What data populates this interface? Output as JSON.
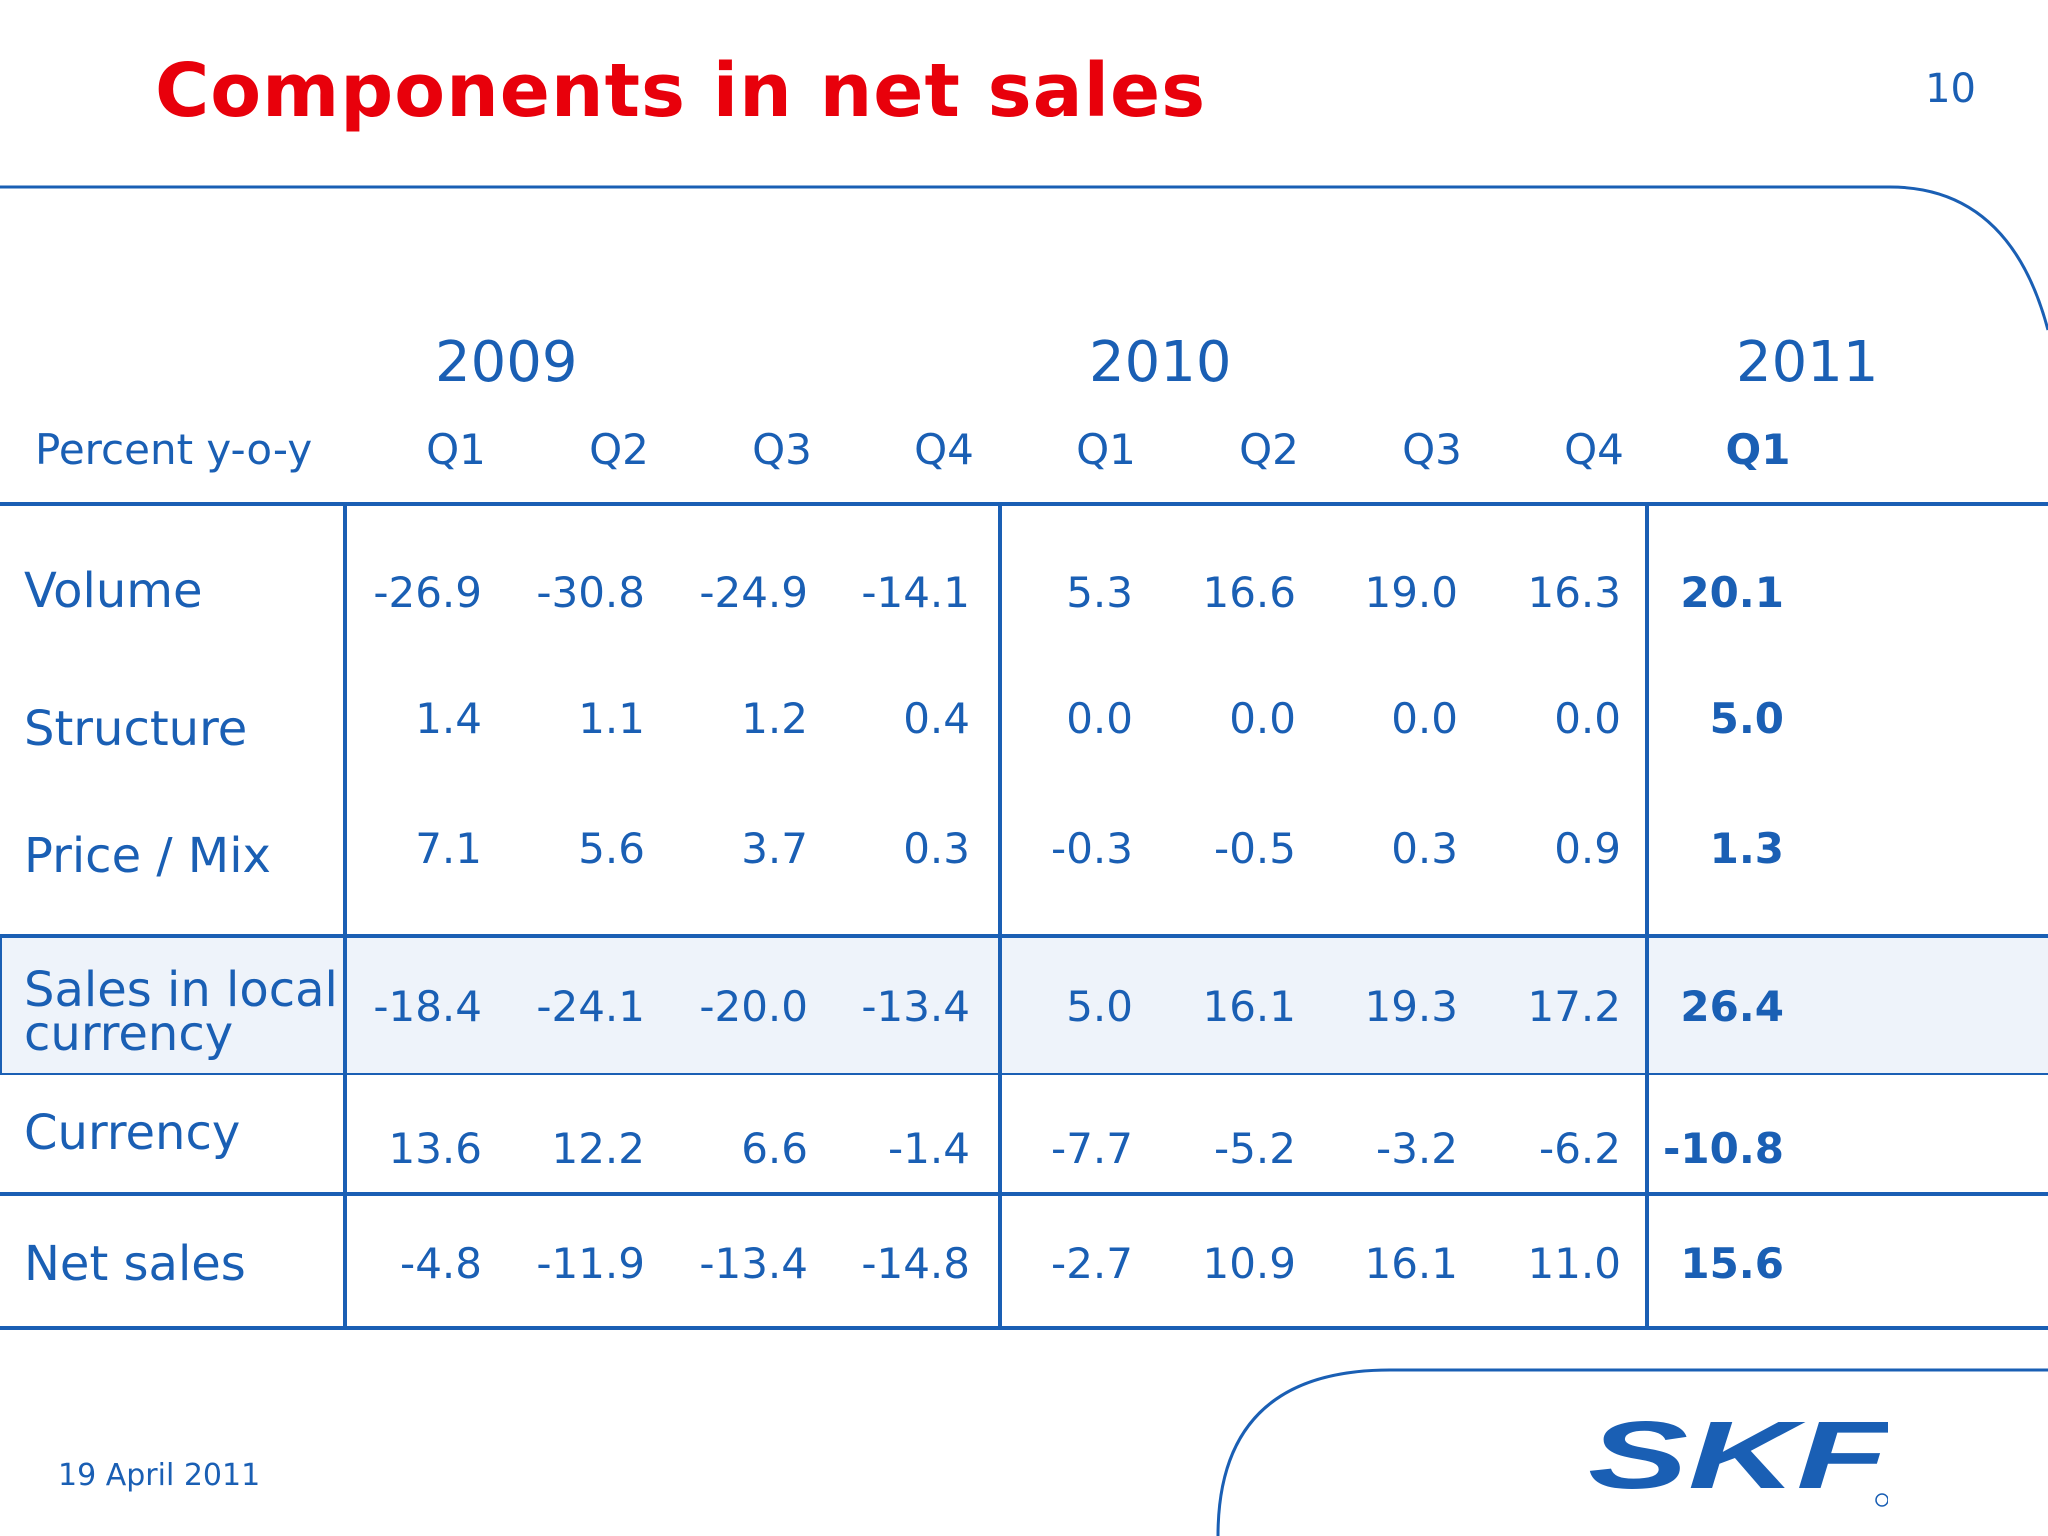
{
  "title": "Components in net sales",
  "page_number": "10",
  "date": "19 April 2011",
  "logo_text": "SKF",
  "colors": {
    "title": "#e8000b",
    "primary": "#1a5fb4",
    "highlight_row": "#eef3fa"
  },
  "table": {
    "years": [
      "2009",
      "2010",
      "2011"
    ],
    "unit_label": "Percent y-o-y",
    "quarters": [
      "Q1",
      "Q2",
      "Q3",
      "Q4",
      "Q1",
      "Q2",
      "Q3",
      "Q4",
      "Q1"
    ],
    "rows": [
      {
        "label": "Volume",
        "values": [
          "-26.9",
          "-30.8",
          "-24.9",
          "-14.1",
          "5.3",
          "16.6",
          "19.0",
          "16.3",
          "20.1"
        ]
      },
      {
        "label": "Structure",
        "values": [
          "1.4",
          "1.1",
          "1.2",
          "0.4",
          "0.0",
          "0.0",
          "0.0",
          "0.0",
          "5.0"
        ]
      },
      {
        "label": "Price / Mix",
        "values": [
          "7.1",
          "5.6",
          "3.7",
          "0.3",
          "-0.3",
          "-0.5",
          "0.3",
          "0.9",
          "1.3"
        ]
      },
      {
        "label_line1": "Sales in local",
        "label_line2": "currency",
        "values": [
          "-18.4",
          "-24.1",
          "-20.0",
          "-13.4",
          "5.0",
          "16.1",
          "19.3",
          "17.2",
          "26.4"
        ]
      },
      {
        "label": "Currency",
        "values": [
          "13.6",
          "12.2",
          "6.6",
          "-1.4",
          "-7.7",
          "-5.2",
          "-3.2",
          "-6.2",
          "-10.8"
        ]
      },
      {
        "label": "Net sales",
        "values": [
          "-4.8",
          "-11.9",
          "-13.4",
          "-14.8",
          "-2.7",
          "10.9",
          "16.1",
          "11.0",
          "15.6"
        ]
      }
    ]
  }
}
